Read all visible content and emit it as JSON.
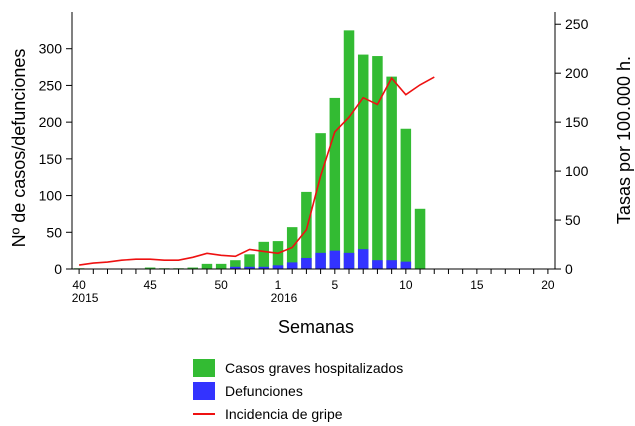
{
  "chart_data": {
    "type": "bar",
    "xlabel": "Semanas",
    "ylabel_left": "Nº de casos/defunciones",
    "ylabel_right": "Tasas por 100.000 h.",
    "ylim_left": [
      0,
      350
    ],
    "ylim_right": [
      0,
      262.5
    ],
    "yticks_left": [
      0,
      50,
      100,
      150,
      200,
      250,
      300
    ],
    "yticks_right": [
      0,
      50,
      100,
      150,
      200,
      250
    ],
    "weeks": [
      40,
      41,
      42,
      43,
      44,
      45,
      46,
      47,
      48,
      49,
      50,
      51,
      52,
      53,
      1,
      2,
      3,
      4,
      5,
      6,
      7,
      8,
      9,
      10,
      11,
      12,
      13,
      14,
      15,
      16,
      17,
      18,
      19,
      20
    ],
    "xtick_labels": [
      {
        "week": 40,
        "label": "40",
        "year": "2015"
      },
      {
        "week": 45,
        "label": "45"
      },
      {
        "week": 50,
        "label": "50"
      },
      {
        "week": 1,
        "label": "1",
        "year": "2016"
      },
      {
        "week": 5,
        "label": "5"
      },
      {
        "week": 10,
        "label": "10"
      },
      {
        "week": 15,
        "label": "15"
      },
      {
        "week": 20,
        "label": "20"
      }
    ],
    "series": [
      {
        "name": "Casos graves hospitalizados",
        "type": "bar",
        "color": "#33bb33",
        "axis": "left",
        "values": [
          1,
          0,
          0,
          0,
          0,
          2,
          1,
          1,
          2,
          7,
          7,
          12,
          20,
          37,
          38,
          57,
          105,
          185,
          233,
          325,
          292,
          290,
          262,
          191,
          82,
          0,
          0,
          0,
          0,
          0,
          0,
          0,
          0,
          0
        ]
      },
      {
        "name": "Defunciones",
        "type": "bar",
        "color": "#3333ff",
        "axis": "left",
        "values": [
          0,
          0,
          0,
          0,
          0,
          0,
          0,
          0,
          0,
          0,
          0,
          3,
          3,
          3,
          5,
          9,
          15,
          22,
          25,
          22,
          27,
          12,
          12,
          10,
          0,
          0,
          0,
          0,
          0,
          0,
          0,
          0,
          0,
          0
        ]
      },
      {
        "name": "Incidencia de gripe",
        "type": "line",
        "color": "#ee1111",
        "axis": "right",
        "values": [
          4,
          6,
          7,
          9,
          10,
          10,
          9,
          9,
          12,
          16,
          14,
          13,
          20,
          18,
          16,
          22,
          40,
          95,
          140,
          155,
          175,
          168,
          195,
          178,
          188,
          196
        ]
      }
    ]
  }
}
